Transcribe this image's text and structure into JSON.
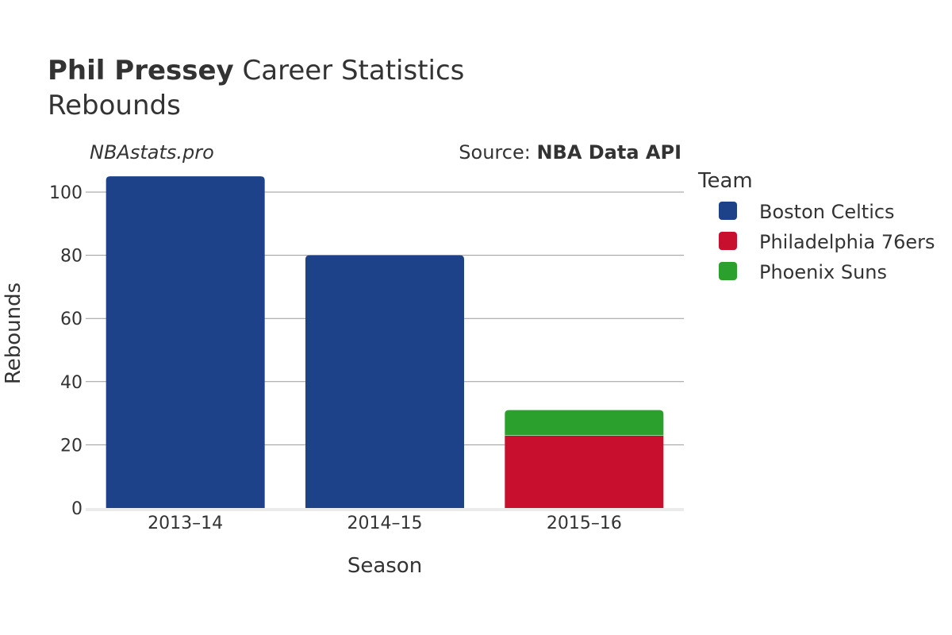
{
  "title": {
    "player": "Phil Pressey",
    "rest": " Career Statistics",
    "subtitle": "Rebounds"
  },
  "watermark": "NBAstats.pro",
  "source": {
    "prefix": "Source: ",
    "name": "NBA Data API"
  },
  "legend": {
    "title": "Team",
    "items": [
      {
        "label": "Boston Celtics",
        "color": "#1d428a"
      },
      {
        "label": "Philadelphia 76ers",
        "color": "#c8102e"
      },
      {
        "label": "Phoenix Suns",
        "color": "#2ca02c"
      }
    ]
  },
  "chart_data": {
    "type": "bar",
    "stacked": true,
    "categories": [
      "2013–14",
      "2014–15",
      "2015–16"
    ],
    "series": [
      {
        "name": "Boston Celtics",
        "color": "#1d428a",
        "values": [
          105,
          80,
          0
        ]
      },
      {
        "name": "Philadelphia 76ers",
        "color": "#c8102e",
        "values": [
          0,
          0,
          23
        ]
      },
      {
        "name": "Phoenix Suns",
        "color": "#2ca02c",
        "values": [
          0,
          0,
          8
        ]
      }
    ],
    "xlabel": "Season",
    "ylabel": "Rebounds",
    "ylim": [
      0,
      110
    ],
    "yticks": [
      0,
      20,
      40,
      60,
      80,
      100
    ],
    "grid": true,
    "legend_position": "right"
  }
}
